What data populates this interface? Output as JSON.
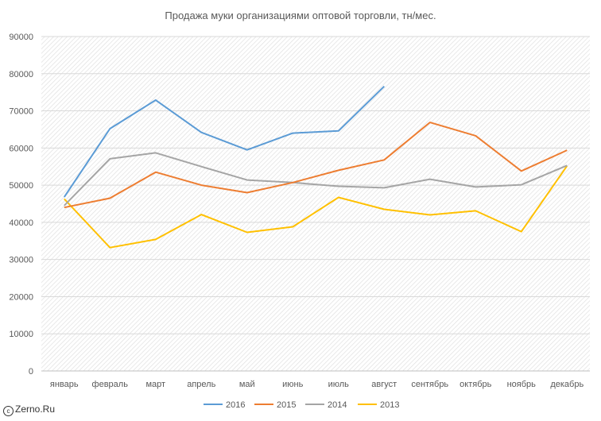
{
  "chart_data": {
    "type": "line",
    "title": "Продажа муки организациями оптовой торговли, тн/мес.",
    "xlabel": "",
    "ylabel": "",
    "categories": [
      "январь",
      "февраль",
      "март",
      "апрель",
      "май",
      "июнь",
      "июль",
      "август",
      "сентябрь",
      "октябрь",
      "ноябрь",
      "декабрь"
    ],
    "ylim": [
      0,
      90000
    ],
    "yticks": [
      "0",
      "10000",
      "20000",
      "30000",
      "40000",
      "50000",
      "60000",
      "70000",
      "80000",
      "90000"
    ],
    "legend_position": "bottom",
    "grid": true,
    "series": [
      {
        "name": "2016",
        "color": "#5B9BD5",
        "values": [
          46800,
          65200,
          72900,
          64200,
          59500,
          64000,
          64600,
          76600,
          null,
          null,
          null,
          null
        ]
      },
      {
        "name": "2015",
        "color": "#ED7D31",
        "values": [
          44000,
          46500,
          53500,
          50000,
          48000,
          50700,
          54000,
          56800,
          66900,
          63300,
          53800,
          59400
        ]
      },
      {
        "name": "2014",
        "color": "#A5A5A5",
        "values": [
          44500,
          57100,
          58700,
          55000,
          51400,
          50700,
          49700,
          49300,
          51600,
          49500,
          50100,
          55300
        ]
      },
      {
        "name": "2013",
        "color": "#FFC000",
        "values": [
          46300,
          33200,
          35400,
          42100,
          37300,
          38800,
          46700,
          43500,
          42000,
          43100,
          37500,
          55200
        ]
      }
    ]
  },
  "watermark": {
    "icon": "copyright-icon",
    "text": "Zerno.Ru"
  }
}
